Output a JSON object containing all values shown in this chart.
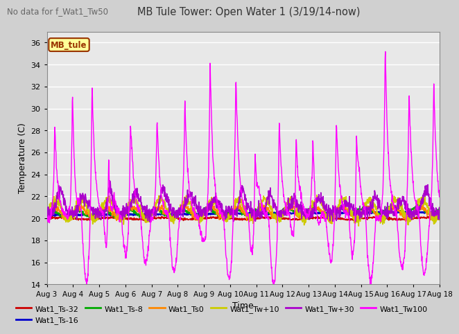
{
  "title": "MB Tule Tower: Open Water 1 (3/19/14-now)",
  "no_data_text": "No data for f_Wat1_Tw50",
  "xlabel": "Time",
  "ylabel": "Temperature (C)",
  "ylim": [
    14,
    37
  ],
  "yticks": [
    14,
    16,
    18,
    20,
    22,
    24,
    26,
    28,
    30,
    32,
    34,
    36
  ],
  "x_tick_labels": [
    "Aug 3",
    "Aug 4",
    "Aug 5",
    "Aug 6",
    "Aug 7",
    "Aug 8",
    "Aug 9",
    "Aug 10",
    "Aug 11",
    "Aug 12",
    "Aug 13",
    "Aug 14",
    "Aug 15",
    "Aug 16",
    "Aug 17",
    "Aug 18"
  ],
  "legend_box_text": "MB_tule",
  "legend_box_color": "#ffff99",
  "legend_box_border": "#993300",
  "series": [
    {
      "name": "Wat1_Ts-32",
      "color": "#cc0000",
      "lw": 1.2
    },
    {
      "name": "Wat1_Ts-16",
      "color": "#0000cc",
      "lw": 1.5
    },
    {
      "name": "Wat1_Ts-8",
      "color": "#00aa00",
      "lw": 1.2
    },
    {
      "name": "Wat1_Ts0",
      "color": "#ff8800",
      "lw": 1.2
    },
    {
      "name": "Wat1_Tw+10",
      "color": "#cccc00",
      "lw": 1.2
    },
    {
      "name": "Wat1_Tw+30",
      "color": "#aa00cc",
      "lw": 1.2
    },
    {
      "name": "Wat1_Tw100",
      "color": "#ff00ff",
      "lw": 1.0
    }
  ]
}
